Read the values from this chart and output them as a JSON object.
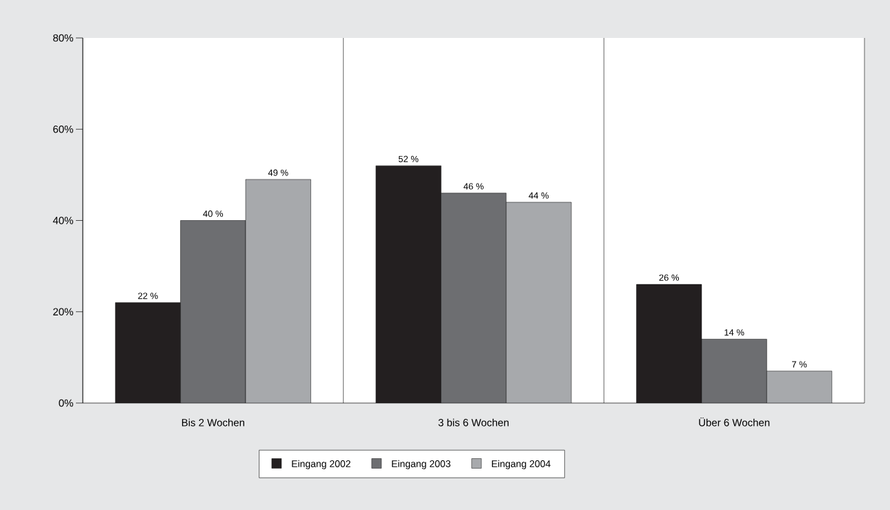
{
  "chart_data": {
    "type": "bar",
    "categories": [
      "Bis 2 Wochen",
      "3 bis 6 Wochen",
      "Über 6 Wochen"
    ],
    "series": [
      {
        "name": "Eingang 2002",
        "color": "#231f20",
        "values": [
          22,
          52,
          26
        ],
        "value_labels": [
          "22 %",
          "52 %",
          "26 %"
        ]
      },
      {
        "name": "Eingang 2003",
        "color": "#6d6e71",
        "values": [
          40,
          46,
          14
        ],
        "value_labels": [
          "40 %",
          "46 %",
          "14 %"
        ]
      },
      {
        "name": "Eingang 2004",
        "color": "#a7a9ac",
        "values": [
          49,
          44,
          7
        ],
        "value_labels": [
          "49 %",
          "44 %",
          "7 %"
        ]
      }
    ],
    "ylim": [
      0,
      80
    ],
    "yticks": [
      {
        "value": 0,
        "label": "0%"
      },
      {
        "value": 20,
        "label": "20%"
      },
      {
        "value": 40,
        "label": "40%"
      },
      {
        "value": 60,
        "label": "60%"
      },
      {
        "value": 80,
        "label": "80%"
      }
    ],
    "grid": "x",
    "legend": "bottom"
  }
}
